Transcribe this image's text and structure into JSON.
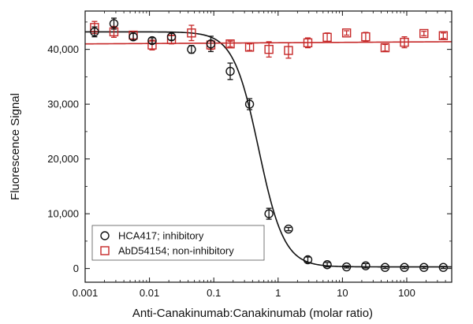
{
  "chart_data": {
    "type": "scatter",
    "xlabel": "Anti-Canakinumab:Canakinumab (molar ratio)",
    "ylabel": "Fluorescence Signal",
    "xscale": "log",
    "xlim": [
      0.001,
      500
    ],
    "ylim": [
      -2500,
      47000
    ],
    "xticks": [
      {
        "value": 0.001,
        "label": "0.001"
      },
      {
        "value": 0.01,
        "label": "0.01"
      },
      {
        "value": 0.1,
        "label": "0.1"
      },
      {
        "value": 1,
        "label": "1"
      },
      {
        "value": 10,
        "label": "10"
      },
      {
        "value": 100,
        "label": "100"
      }
    ],
    "yticks": [
      {
        "value": 0,
        "label": "0"
      },
      {
        "value": 10000,
        "label": "10,000"
      },
      {
        "value": 20000,
        "label": "20,000"
      },
      {
        "value": 30000,
        "label": "30,000"
      },
      {
        "value": 40000,
        "label": "40,000"
      }
    ],
    "grid": false,
    "legend_position": "bottom-left",
    "series": [
      {
        "name": "HCA417; inhibitory",
        "marker": "circle",
        "color": "#111111",
        "points": [
          {
            "x": 0.0014,
            "y": 43200,
            "err": 900
          },
          {
            "x": 0.0028,
            "y": 44700,
            "err": 1000
          },
          {
            "x": 0.0056,
            "y": 42300,
            "err": 600
          },
          {
            "x": 0.011,
            "y": 41600,
            "err": 500
          },
          {
            "x": 0.022,
            "y": 42300,
            "err": 600
          },
          {
            "x": 0.045,
            "y": 40000,
            "err": 700
          },
          {
            "x": 0.09,
            "y": 41000,
            "err": 1400
          },
          {
            "x": 0.18,
            "y": 36000,
            "err": 1500
          },
          {
            "x": 0.36,
            "y": 30000,
            "err": 1000
          },
          {
            "x": 0.72,
            "y": 10000,
            "err": 1000
          },
          {
            "x": 1.45,
            "y": 7200,
            "err": 300
          },
          {
            "x": 2.9,
            "y": 1600,
            "err": 500
          },
          {
            "x": 5.8,
            "y": 700,
            "err": 400
          },
          {
            "x": 11.6,
            "y": 300,
            "err": 200
          },
          {
            "x": 23,
            "y": 500,
            "err": 400
          },
          {
            "x": 46,
            "y": 200,
            "err": 200
          },
          {
            "x": 92,
            "y": 200,
            "err": 200
          },
          {
            "x": 185,
            "y": 200,
            "err": 200
          },
          {
            "x": 370,
            "y": 200,
            "err": 200
          }
        ],
        "fit": {
          "model": "4PL",
          "top": 43200,
          "bottom": 300,
          "ec50": 0.5,
          "hill": 2.2
        }
      },
      {
        "name": "AbD54154; non-inhibitory",
        "marker": "square",
        "color": "#c62828",
        "points": [
          {
            "x": 0.0014,
            "y": 44000,
            "err": 1100
          },
          {
            "x": 0.0028,
            "y": 43200,
            "err": 1000
          },
          {
            "x": 0.0056,
            "y": 42600,
            "err": 700
          },
          {
            "x": 0.011,
            "y": 40800,
            "err": 900
          },
          {
            "x": 0.022,
            "y": 41800,
            "err": 800
          },
          {
            "x": 0.045,
            "y": 43000,
            "err": 1400
          },
          {
            "x": 0.09,
            "y": 40800,
            "err": 800
          },
          {
            "x": 0.18,
            "y": 41000,
            "err": 500
          },
          {
            "x": 0.36,
            "y": 40400,
            "err": 600
          },
          {
            "x": 0.72,
            "y": 40000,
            "err": 1400
          },
          {
            "x": 1.45,
            "y": 39800,
            "err": 1400
          },
          {
            "x": 2.9,
            "y": 41200,
            "err": 900
          },
          {
            "x": 5.8,
            "y": 42200,
            "err": 800
          },
          {
            "x": 11.6,
            "y": 43000,
            "err": 400
          },
          {
            "x": 23,
            "y": 42300,
            "err": 800
          },
          {
            "x": 46,
            "y": 40300,
            "err": 600
          },
          {
            "x": 92,
            "y": 41300,
            "err": 1000
          },
          {
            "x": 185,
            "y": 42900,
            "err": 400
          },
          {
            "x": 370,
            "y": 42500,
            "err": 500
          }
        ],
        "fit": {
          "model": "linear",
          "y_start": 41000,
          "y_end": 41400
        }
      }
    ]
  }
}
